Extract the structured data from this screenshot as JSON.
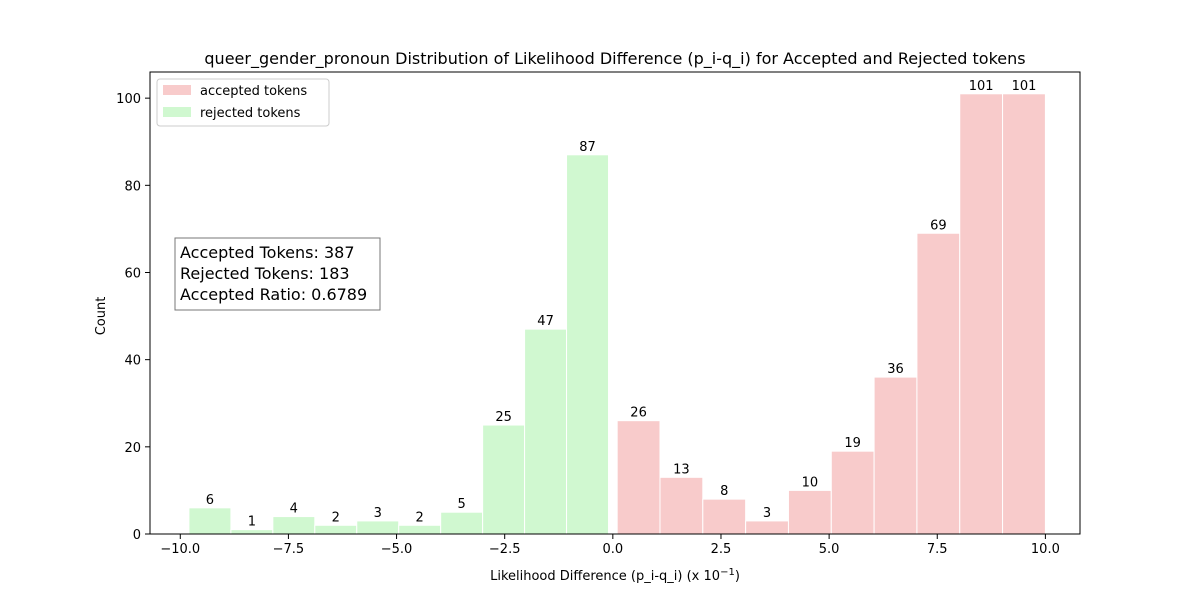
{
  "chart_data": {
    "type": "bar",
    "title": "queer_gender_pronoun Distribution of Likelihood Difference (p_i-q_i) for Accepted and Rejected tokens",
    "xlabel": "Likelihood Difference (p_i-q_i) (x 10",
    "xlabel_exponent": "−1",
    "xlabel_suffix": ")",
    "ylabel": "Count",
    "xlim": [
      -10.7,
      10.8
    ],
    "ylim": [
      0,
      106
    ],
    "x_ticks": [
      -10.0,
      -7.5,
      -5.0,
      -2.5,
      0.0,
      2.5,
      5.0,
      7.5,
      10.0
    ],
    "x_tick_labels": [
      "−10.0",
      "−7.5",
      "−5.0",
      "−2.5",
      "0.0",
      "2.5",
      "5.0",
      "7.5",
      "10.0"
    ],
    "y_ticks": [
      0,
      20,
      40,
      60,
      80,
      100
    ],
    "y_tick_labels": [
      "0",
      "20",
      "40",
      "60",
      "80",
      "100"
    ],
    "grid": false,
    "legend_position": "top-left",
    "series": [
      {
        "name": "accepted tokens",
        "color": "#f8cbcb",
        "bins": [
          {
            "x0": 0.1,
            "x1": 1.09,
            "value": 26
          },
          {
            "x0": 1.09,
            "x1": 2.08,
            "value": 13
          },
          {
            "x0": 2.08,
            "x1": 3.07,
            "value": 8
          },
          {
            "x0": 3.07,
            "x1": 4.06,
            "value": 3
          },
          {
            "x0": 4.06,
            "x1": 5.05,
            "value": 10
          },
          {
            "x0": 5.05,
            "x1": 6.04,
            "value": 19
          },
          {
            "x0": 6.04,
            "x1": 7.03,
            "value": 36
          },
          {
            "x0": 7.03,
            "x1": 8.02,
            "value": 69
          },
          {
            "x0": 8.02,
            "x1": 9.01,
            "value": 101
          },
          {
            "x0": 9.01,
            "x1": 10.0,
            "value": 101
          }
        ]
      },
      {
        "name": "rejected tokens",
        "color": "#d0f8d0",
        "bins": [
          {
            "x0": -9.8,
            "x1": -8.83,
            "value": 6
          },
          {
            "x0": -8.83,
            "x1": -7.86,
            "value": 1
          },
          {
            "x0": -7.86,
            "x1": -6.89,
            "value": 4
          },
          {
            "x0": -6.89,
            "x1": -5.92,
            "value": 2
          },
          {
            "x0": -5.92,
            "x1": -4.95,
            "value": 3
          },
          {
            "x0": -4.95,
            "x1": -3.98,
            "value": 2
          },
          {
            "x0": -3.98,
            "x1": -3.01,
            "value": 5
          },
          {
            "x0": -3.01,
            "x1": -2.04,
            "value": 25
          },
          {
            "x0": -2.04,
            "x1": -1.07,
            "value": 47
          },
          {
            "x0": -1.07,
            "x1": -0.1,
            "value": 87
          }
        ]
      }
    ],
    "annotation": {
      "lines": [
        "Accepted Tokens: 387",
        "Rejected Tokens: 183",
        "Accepted Ratio: 0.6789"
      ]
    }
  }
}
